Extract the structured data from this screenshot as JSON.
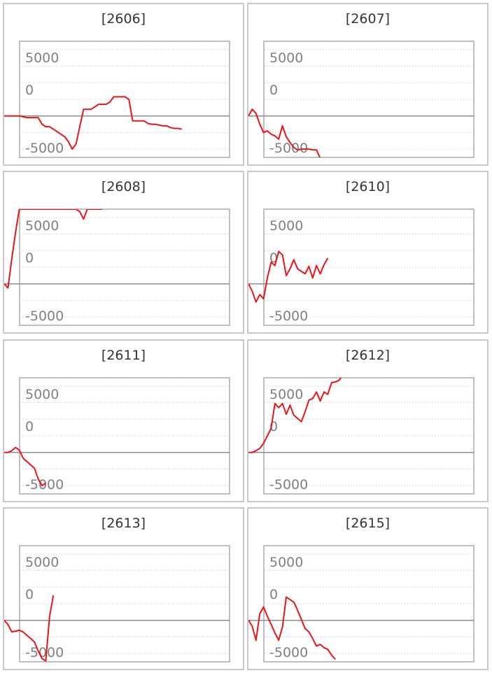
{
  "colors": {
    "line": "#e8141b",
    "zero_line": "#8c8c8c",
    "grid": "#d9d9d9",
    "plot_border": "#bfbfbf",
    "panel_border": "#c8c8c8",
    "tick_label": "#808080"
  },
  "chart_data": [
    {
      "type": "line",
      "title": "[2606]",
      "ylim": [
        -7000,
        7000
      ],
      "y_ticks": [
        "5000",
        "0",
        "-5000"
      ],
      "grid": true,
      "values": [
        -2000,
        -2000,
        -2000,
        -2000,
        -2000,
        -2100,
        -2200,
        -2200,
        -2200,
        -2200,
        -3000,
        -3300,
        -3300,
        -3600,
        -3900,
        -4200,
        -4500,
        -5100,
        -6000,
        -5400,
        -3300,
        -1200,
        -1200,
        -1200,
        -900,
        -600,
        -600,
        -600,
        -300,
        300,
        300,
        300,
        300,
        0,
        -2600,
        -2600,
        -2600,
        -2600,
        -2900,
        -3000,
        -3000,
        -3100,
        -3200,
        -3200,
        -3400,
        -3500,
        -3500,
        -3600
      ]
    },
    {
      "type": "line",
      "title": "[2607]",
      "ylim": [
        -7000,
        7000
      ],
      "y_ticks": [
        "5000",
        "0",
        "-5000"
      ],
      "grid": true,
      "values": [
        -2000,
        -1200,
        -1700,
        -3000,
        -4000,
        -3800,
        -4200,
        -4400,
        -4800,
        -3200,
        -4500,
        -5200,
        -5800,
        -6100,
        -6000,
        -6000,
        -6000,
        -6100,
        -6100,
        -7100,
        -7500,
        -8100,
        -9000,
        -9700
      ]
    },
    {
      "type": "line",
      "title": "[2608]",
      "ylim": [
        -7000,
        7000
      ],
      "y_ticks": [
        "5000",
        "0",
        "-5000"
      ],
      "grid": true,
      "values": [
        -2000,
        -2500,
        1000,
        4200,
        7000,
        7000,
        7000,
        7000,
        7000,
        7000,
        7000,
        7000,
        7000,
        7000,
        7000,
        7000,
        7000,
        7000,
        7000,
        7000,
        6700,
        5800,
        7000,
        7000,
        7000,
        7000,
        7000
      ]
    },
    {
      "type": "line",
      "title": "[2610]",
      "ylim": [
        -7000,
        7000
      ],
      "y_ticks": [
        "5000",
        "0",
        "-5000"
      ],
      "grid": true,
      "values": [
        -2000,
        -2900,
        -4200,
        -3300,
        -3800,
        -1300,
        600,
        200,
        1900,
        1500,
        -1000,
        -200,
        900,
        -200,
        -500,
        -800,
        100,
        -1300,
        200,
        -800,
        300,
        1100
      ]
    },
    {
      "type": "line",
      "title": "[2611]",
      "ylim": [
        -7000,
        7000
      ],
      "y_ticks": [
        "5000",
        "0",
        "-5000"
      ],
      "grid": true,
      "values": [
        -2000,
        -2000,
        -1800,
        -1400,
        -1700,
        -2700,
        -3100,
        -3500,
        -3900,
        -5200,
        -6000,
        -5700
      ]
    },
    {
      "type": "line",
      "title": "[2612]",
      "ylim": [
        -7000,
        7000
      ],
      "y_ticks": [
        "5000",
        "0",
        "-5000"
      ],
      "grid": true,
      "values": [
        -2000,
        -2000,
        -1800,
        -1500,
        -900,
        0,
        900,
        3900,
        3400,
        3900,
        2600,
        3700,
        2500,
        2100,
        1700,
        2900,
        4300,
        4500,
        5300,
        4200,
        5300,
        5000,
        6400,
        6500,
        6700,
        7400
      ]
    },
    {
      "type": "line",
      "title": "[2613]",
      "ylim": [
        -7000,
        7000
      ],
      "y_ticks": [
        "5000",
        "0",
        "-5000"
      ],
      "grid": true,
      "values": [
        -2000,
        -2500,
        -3400,
        -3300,
        -3200,
        -3400,
        -3800,
        -4200,
        -4600,
        -5700,
        -6600,
        -6900,
        -1600,
        1000
      ]
    },
    {
      "type": "line",
      "title": "[2615]",
      "ylim": [
        -7000,
        7000
      ],
      "y_ticks": [
        "5000",
        "0",
        "-5000"
      ],
      "grid": true,
      "values": [
        -2000,
        -2700,
        -4400,
        -1200,
        -400,
        -1500,
        -2500,
        -3500,
        -4400,
        -2800,
        800,
        500,
        200,
        -800,
        -1900,
        -3000,
        -3400,
        -4200,
        -5100,
        -4900,
        -5300,
        -5500,
        -6200,
        -6700
      ]
    }
  ]
}
